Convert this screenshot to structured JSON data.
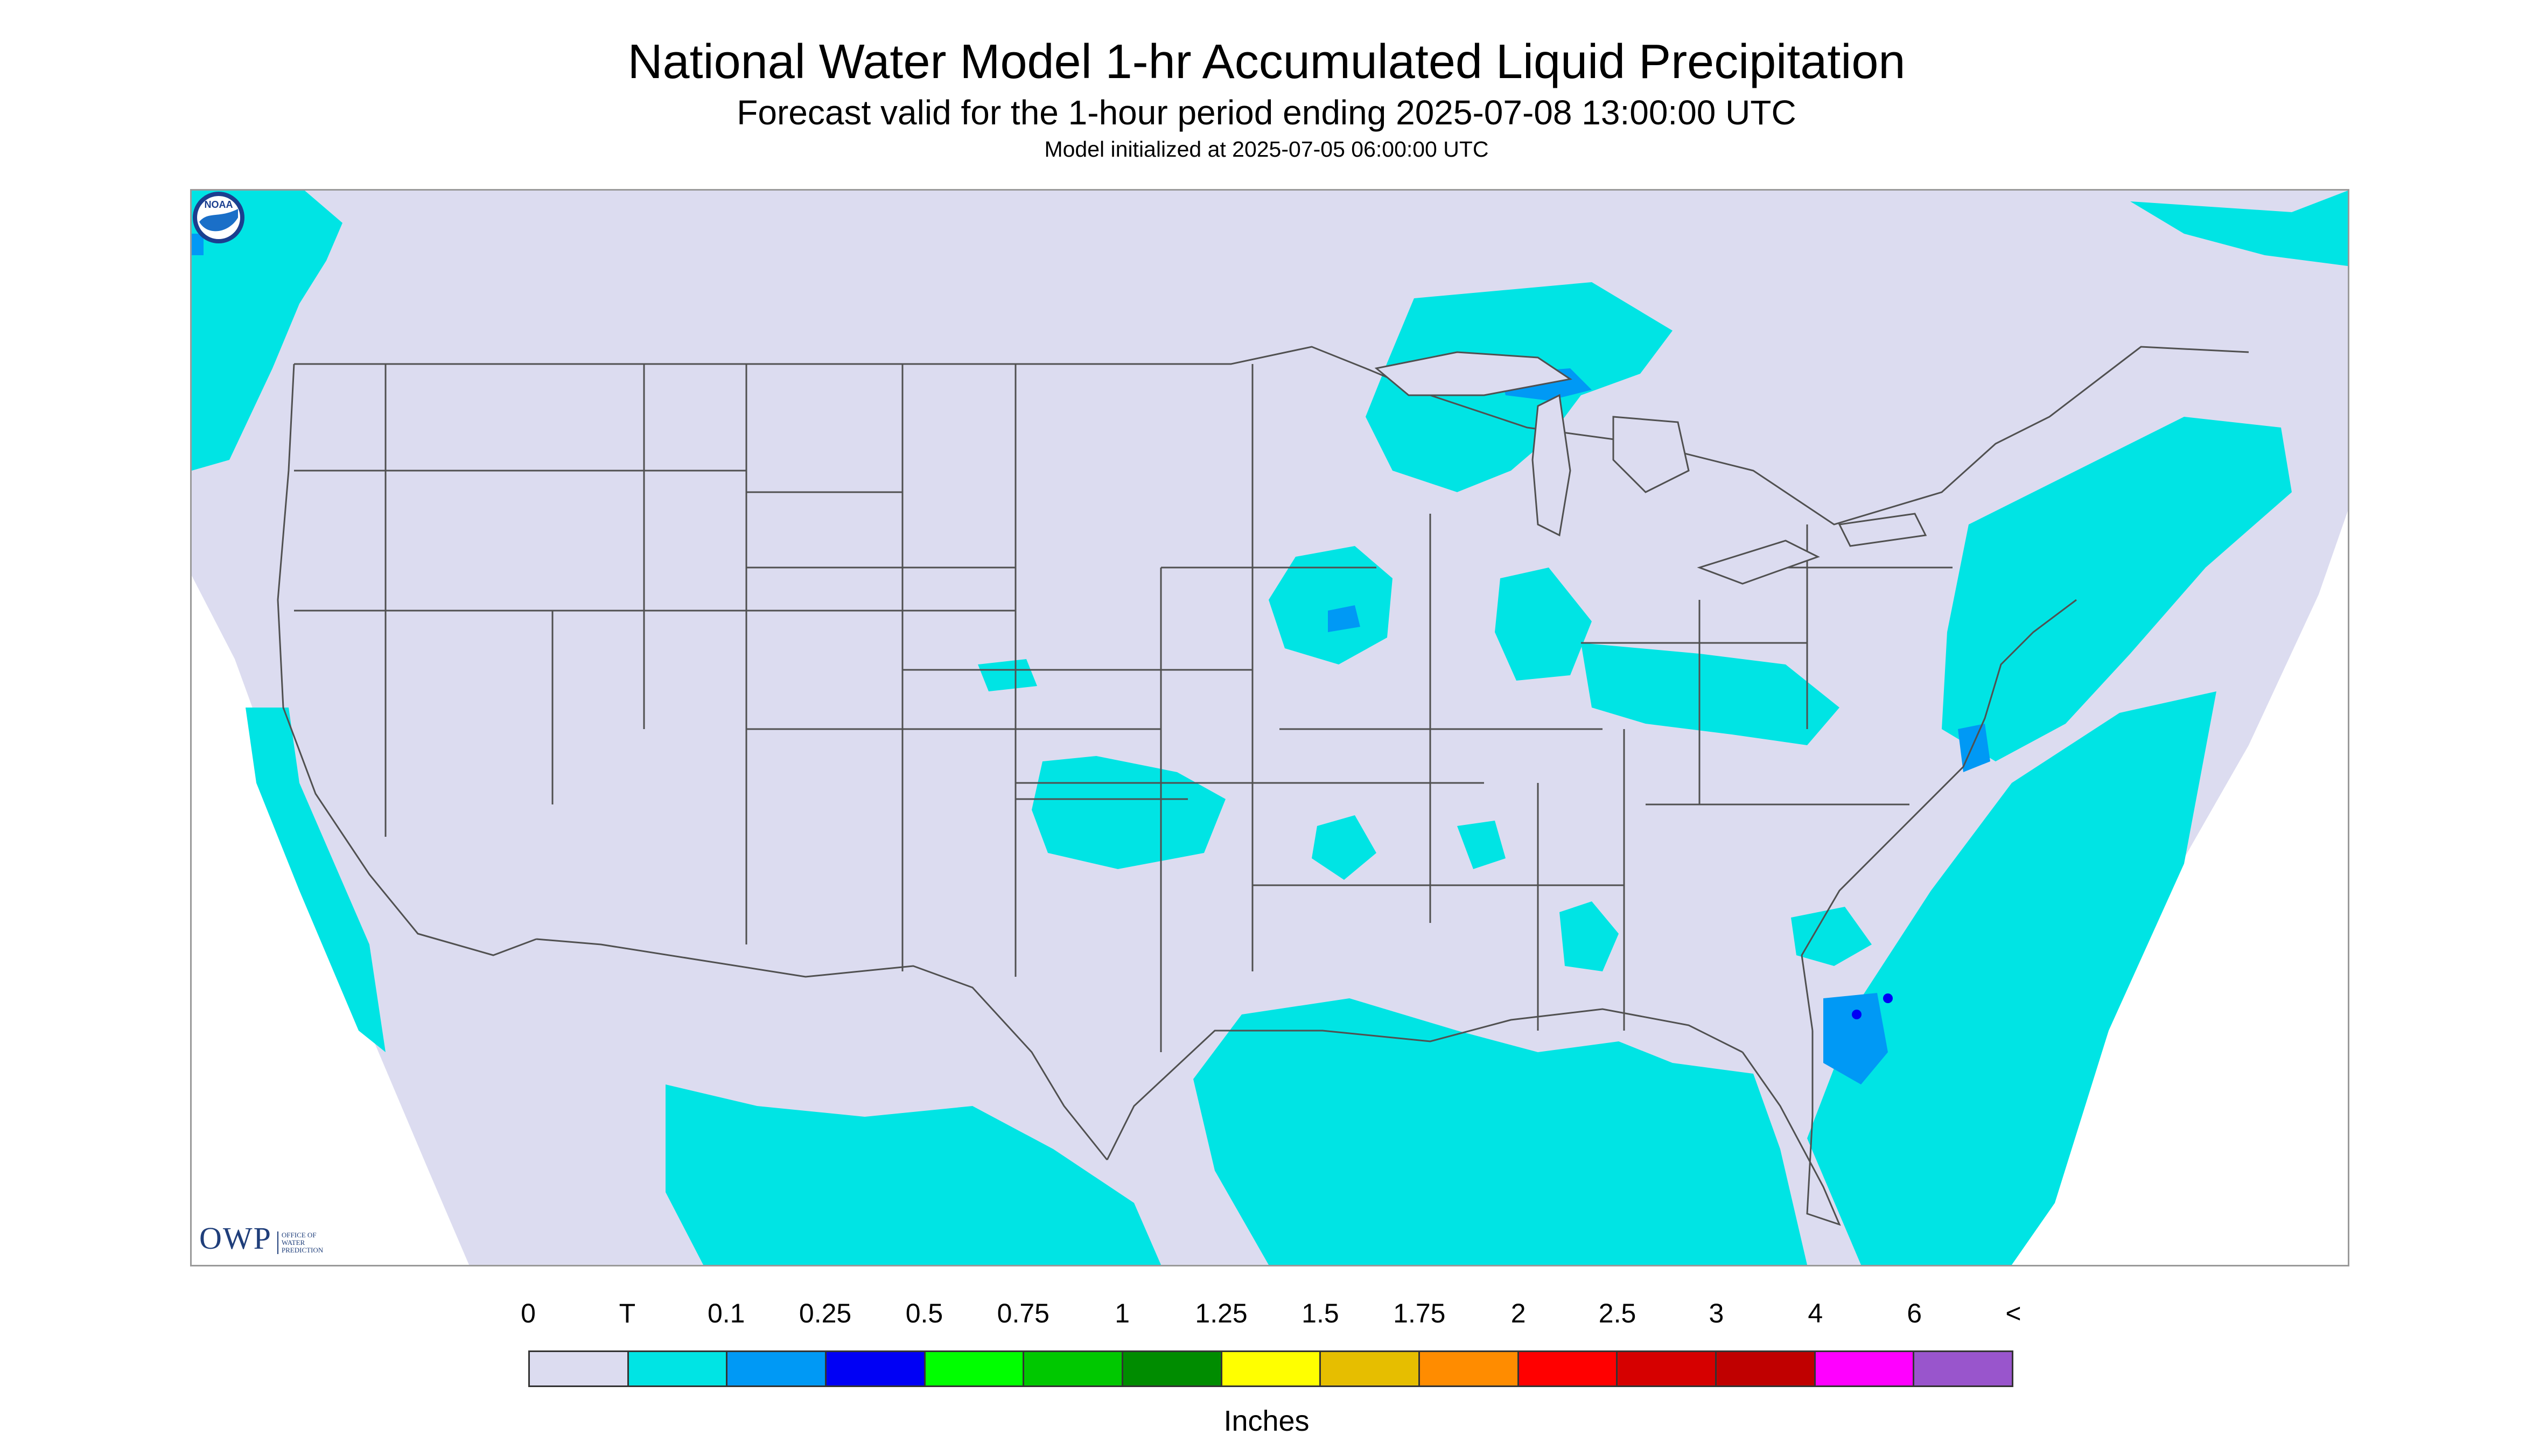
{
  "header": {
    "title": "National Water Model 1-hr Accumulated Liquid Precipitation",
    "subtitle": "Forecast valid for the 1-hour period ending 2025-07-08 13:00:00 UTC",
    "init": "Model initialized at 2025-07-05 06:00:00 UTC"
  },
  "map": {
    "region": "Continental United States",
    "background_color": "#dcdcf0",
    "precip_color_trace": "#00e4e4",
    "precip_color_light": "#0099f5",
    "precip_color_moderate": "#0000f5",
    "outside_domain_color": "#ffffff",
    "border_color": "#505050"
  },
  "logos": {
    "owp_mark": "OWP",
    "owp_text": "OFFICE OF WATER PREDICTION",
    "noaa_text": "NOAA",
    "noaa_icon": "noaa-logo-icon"
  },
  "legend": {
    "labels": [
      "0",
      "T",
      "0.1",
      "0.25",
      "0.5",
      "0.75",
      "1",
      "1.25",
      "1.5",
      "1.75",
      "2",
      "2.5",
      "3",
      "4",
      "6",
      "<"
    ],
    "colors": [
      "#dcdcf0",
      "#00e4e4",
      "#0099f5",
      "#0000f5",
      "#00ff00",
      "#00c800",
      "#008c00",
      "#ffff00",
      "#e6be00",
      "#ff8c00",
      "#ff0000",
      "#d60000",
      "#c00000",
      "#ff00ff",
      "#9955cc"
    ],
    "units": "Inches"
  }
}
